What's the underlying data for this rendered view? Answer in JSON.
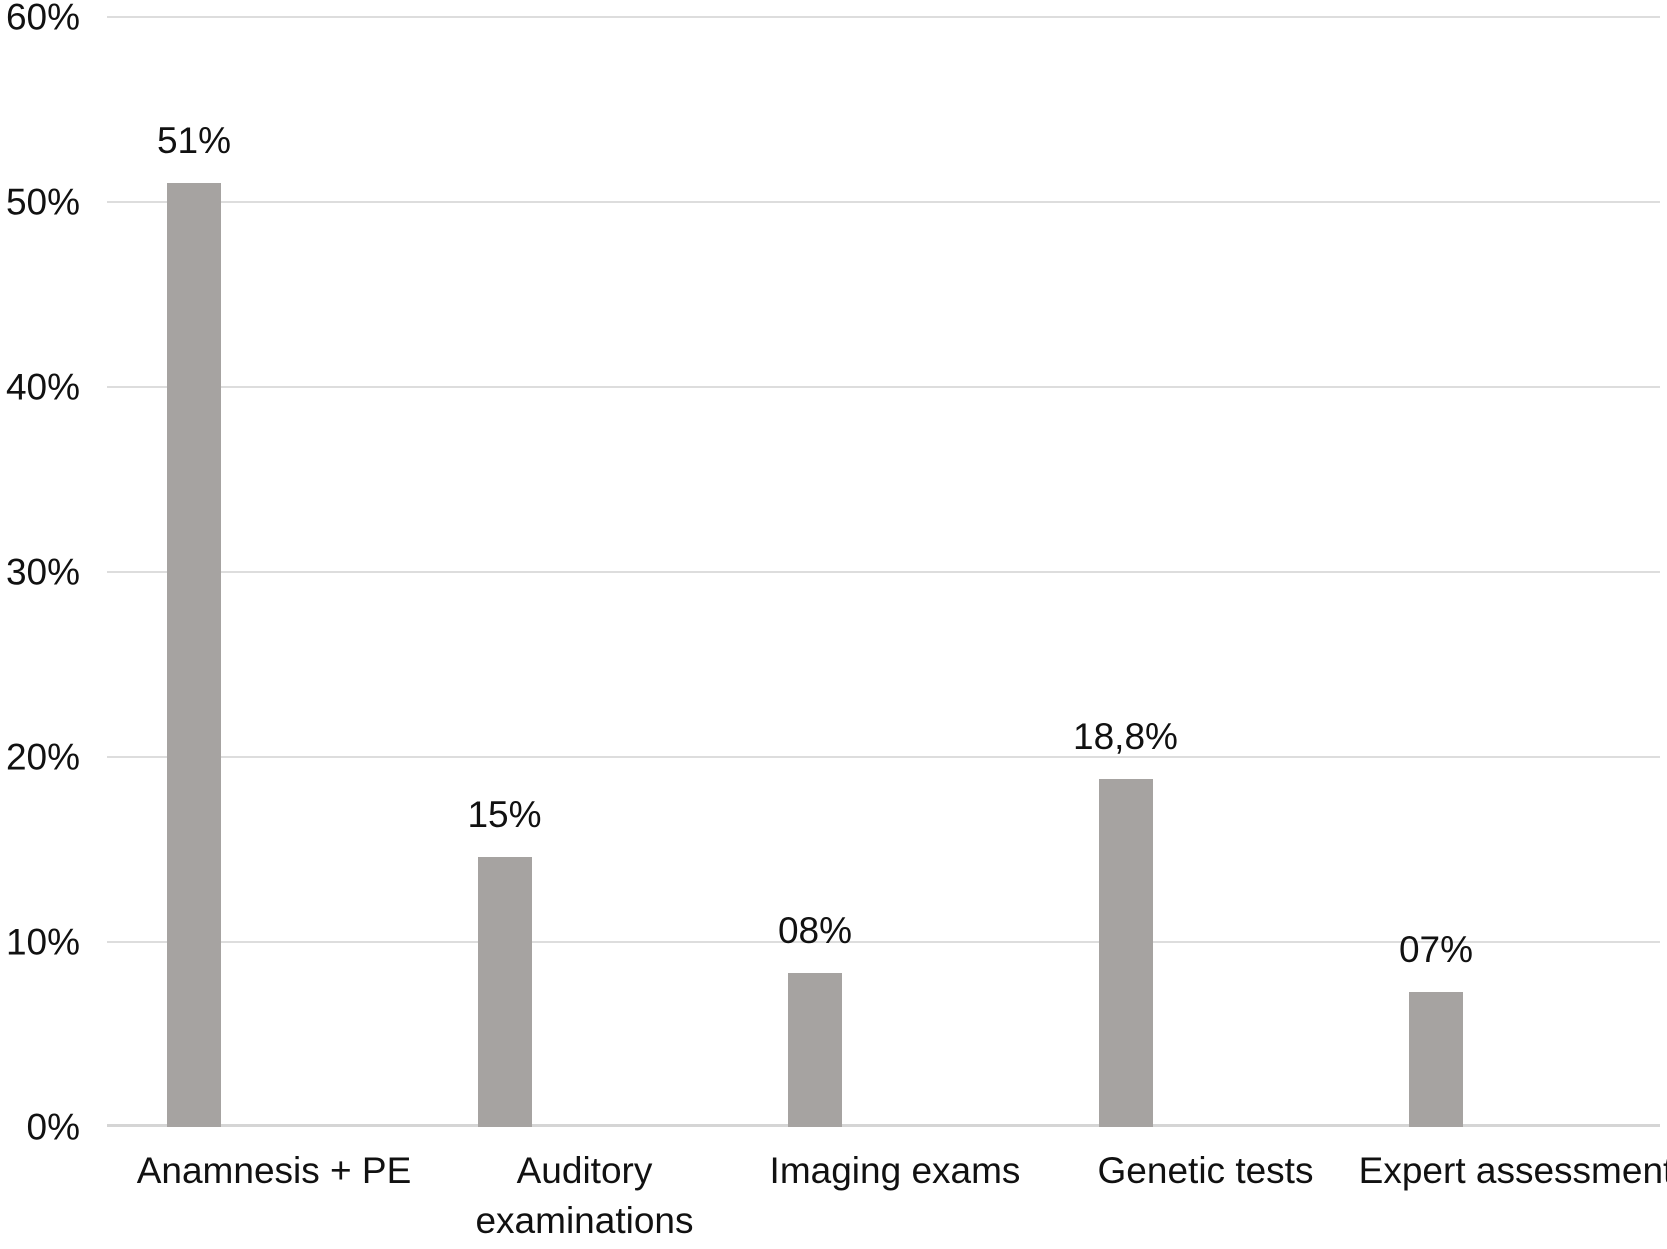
{
  "chart_data": {
    "type": "bar",
    "title": "",
    "xlabel": "",
    "ylabel": "",
    "categories": [
      "Anamnesis + PE",
      "Auditory examinations",
      "Imaging exams",
      "Genetic tests",
      "Expert assessment"
    ],
    "values": [
      51,
      14.6,
      8.3,
      18.8,
      7.3
    ],
    "value_labels": [
      "51%",
      "15%",
      "08%",
      "18,8%",
      "07%"
    ],
    "y_ticks": [
      "0%",
      "10%",
      "20%",
      "30%",
      "40%",
      "50%",
      "60%"
    ],
    "ylim": [
      0,
      60
    ],
    "grid": "horizontal",
    "legend": "none",
    "colors": {
      "bar": "#a6a3a1",
      "gridline": "#dddddd",
      "axis_line": "#d5d5d5",
      "text": "#111111",
      "background": "#ffffff"
    }
  }
}
